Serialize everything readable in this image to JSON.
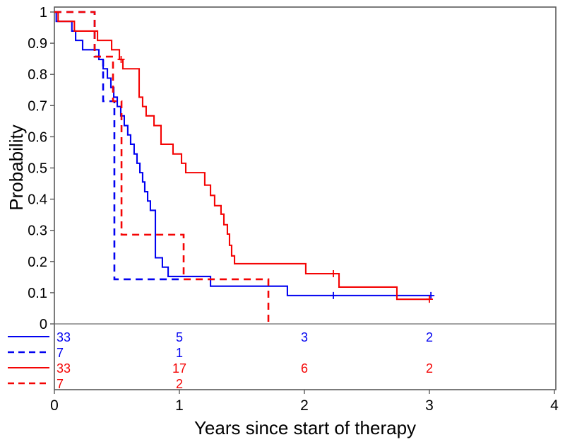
{
  "chart_data": {
    "type": "line",
    "subtype": "kaplan-meier-step-plot",
    "title": "",
    "xlabel": "Years since start of therapy",
    "ylabel": "Probability",
    "xlim": [
      0,
      4
    ],
    "ylim": [
      0,
      1
    ],
    "grid": false,
    "legend_position": "left-of-at-risk-table",
    "x_ticks": [
      0,
      1,
      2,
      3,
      4
    ],
    "x_tick_labels": [
      "0",
      "1",
      "2",
      "3",
      "4"
    ],
    "y_ticks": [
      0,
      0.1,
      0.2,
      0.3,
      0.4,
      0.5,
      0.6,
      0.7,
      0.8,
      0.9,
      1
    ],
    "y_tick_labels": [
      "0",
      "0.1",
      "0.2",
      "0.3",
      "0.4",
      "0.5",
      "0.6",
      "0.7",
      "0.8",
      "0.9",
      "1"
    ],
    "colors": {
      "blue": "#0202f0",
      "red": "#f40404",
      "frame": "#5a5a5a",
      "baseline": "#6a6a6a",
      "text": "#000000"
    },
    "series": [
      {
        "name": "blue-solid",
        "color": "#0202f0",
        "line_style": "solid",
        "steps": [
          [
            0.0,
            1.0
          ],
          [
            0.015,
            0.97
          ],
          [
            0.14,
            0.939
          ],
          [
            0.17,
            0.909
          ],
          [
            0.226,
            0.879
          ],
          [
            0.356,
            0.848
          ],
          [
            0.39,
            0.818
          ],
          [
            0.424,
            0.788
          ],
          [
            0.452,
            0.758
          ],
          [
            0.475,
            0.727
          ],
          [
            0.503,
            0.697
          ],
          [
            0.531,
            0.667
          ],
          [
            0.559,
            0.636
          ],
          [
            0.587,
            0.606
          ],
          [
            0.61,
            0.576
          ],
          [
            0.638,
            0.545
          ],
          [
            0.661,
            0.515
          ],
          [
            0.684,
            0.485
          ],
          [
            0.706,
            0.455
          ],
          [
            0.723,
            0.424
          ],
          [
            0.746,
            0.394
          ],
          [
            0.768,
            0.364
          ],
          [
            0.808,
            0.212
          ],
          [
            0.864,
            0.182
          ],
          [
            0.91,
            0.152
          ],
          [
            1.249,
            0.121
          ],
          [
            1.864,
            0.091
          ]
        ],
        "end_time": 3.012,
        "censor_marks": [
          [
            2.232,
            0.091
          ],
          [
            3.012,
            0.091
          ]
        ]
      },
      {
        "name": "blue-dashed",
        "color": "#0202f0",
        "line_style": "dashed",
        "steps": [
          [
            0.0,
            1.0
          ],
          [
            0.322,
            0.857
          ],
          [
            0.39,
            0.714
          ],
          [
            0.48,
            0.143
          ]
        ],
        "end_time": 1.01,
        "censor_marks": []
      },
      {
        "name": "red-solid",
        "color": "#f40404",
        "line_style": "solid",
        "steps": [
          [
            0.0,
            1.0
          ],
          [
            0.03,
            0.97
          ],
          [
            0.16,
            0.939
          ],
          [
            0.345,
            0.909
          ],
          [
            0.458,
            0.879
          ],
          [
            0.52,
            0.848
          ],
          [
            0.548,
            0.818
          ],
          [
            0.678,
            0.727
          ],
          [
            0.706,
            0.697
          ],
          [
            0.734,
            0.667
          ],
          [
            0.797,
            0.636
          ],
          [
            0.853,
            0.576
          ],
          [
            0.949,
            0.545
          ],
          [
            1.017,
            0.515
          ],
          [
            1.051,
            0.485
          ],
          [
            1.203,
            0.445
          ],
          [
            1.249,
            0.412
          ],
          [
            1.282,
            0.379
          ],
          [
            1.333,
            0.352
          ],
          [
            1.356,
            0.318
          ],
          [
            1.384,
            0.288
          ],
          [
            1.401,
            0.252
          ],
          [
            1.418,
            0.218
          ],
          [
            1.441,
            0.193
          ],
          [
            2.011,
            0.161
          ],
          [
            2.277,
            0.118
          ],
          [
            2.74,
            0.079
          ]
        ],
        "end_time": 3.0,
        "censor_marks": [
          [
            0.534,
            0.848
          ],
          [
            2.232,
            0.161
          ],
          [
            3.0,
            0.079
          ]
        ]
      },
      {
        "name": "red-dashed",
        "color": "#f40404",
        "line_style": "dashed",
        "steps": [
          [
            0.0,
            1.0
          ],
          [
            0.322,
            0.857
          ],
          [
            0.469,
            0.714
          ],
          [
            0.537,
            0.286
          ],
          [
            1.034,
            0.143
          ],
          [
            1.712,
            0.0
          ]
        ],
        "end_time": 1.712,
        "censor_marks": []
      }
    ],
    "at_risk_table": {
      "times": [
        0,
        1,
        2,
        3
      ],
      "rows": [
        {
          "series": "blue-solid",
          "counts": [
            "33",
            "5",
            "3",
            "2"
          ]
        },
        {
          "series": "blue-dashed",
          "counts": [
            "7",
            "1",
            "",
            ""
          ]
        },
        {
          "series": "red-solid",
          "counts": [
            "33",
            "17",
            "6",
            "2"
          ]
        },
        {
          "series": "red-dashed",
          "counts": [
            "7",
            "2",
            "",
            ""
          ]
        }
      ]
    }
  }
}
